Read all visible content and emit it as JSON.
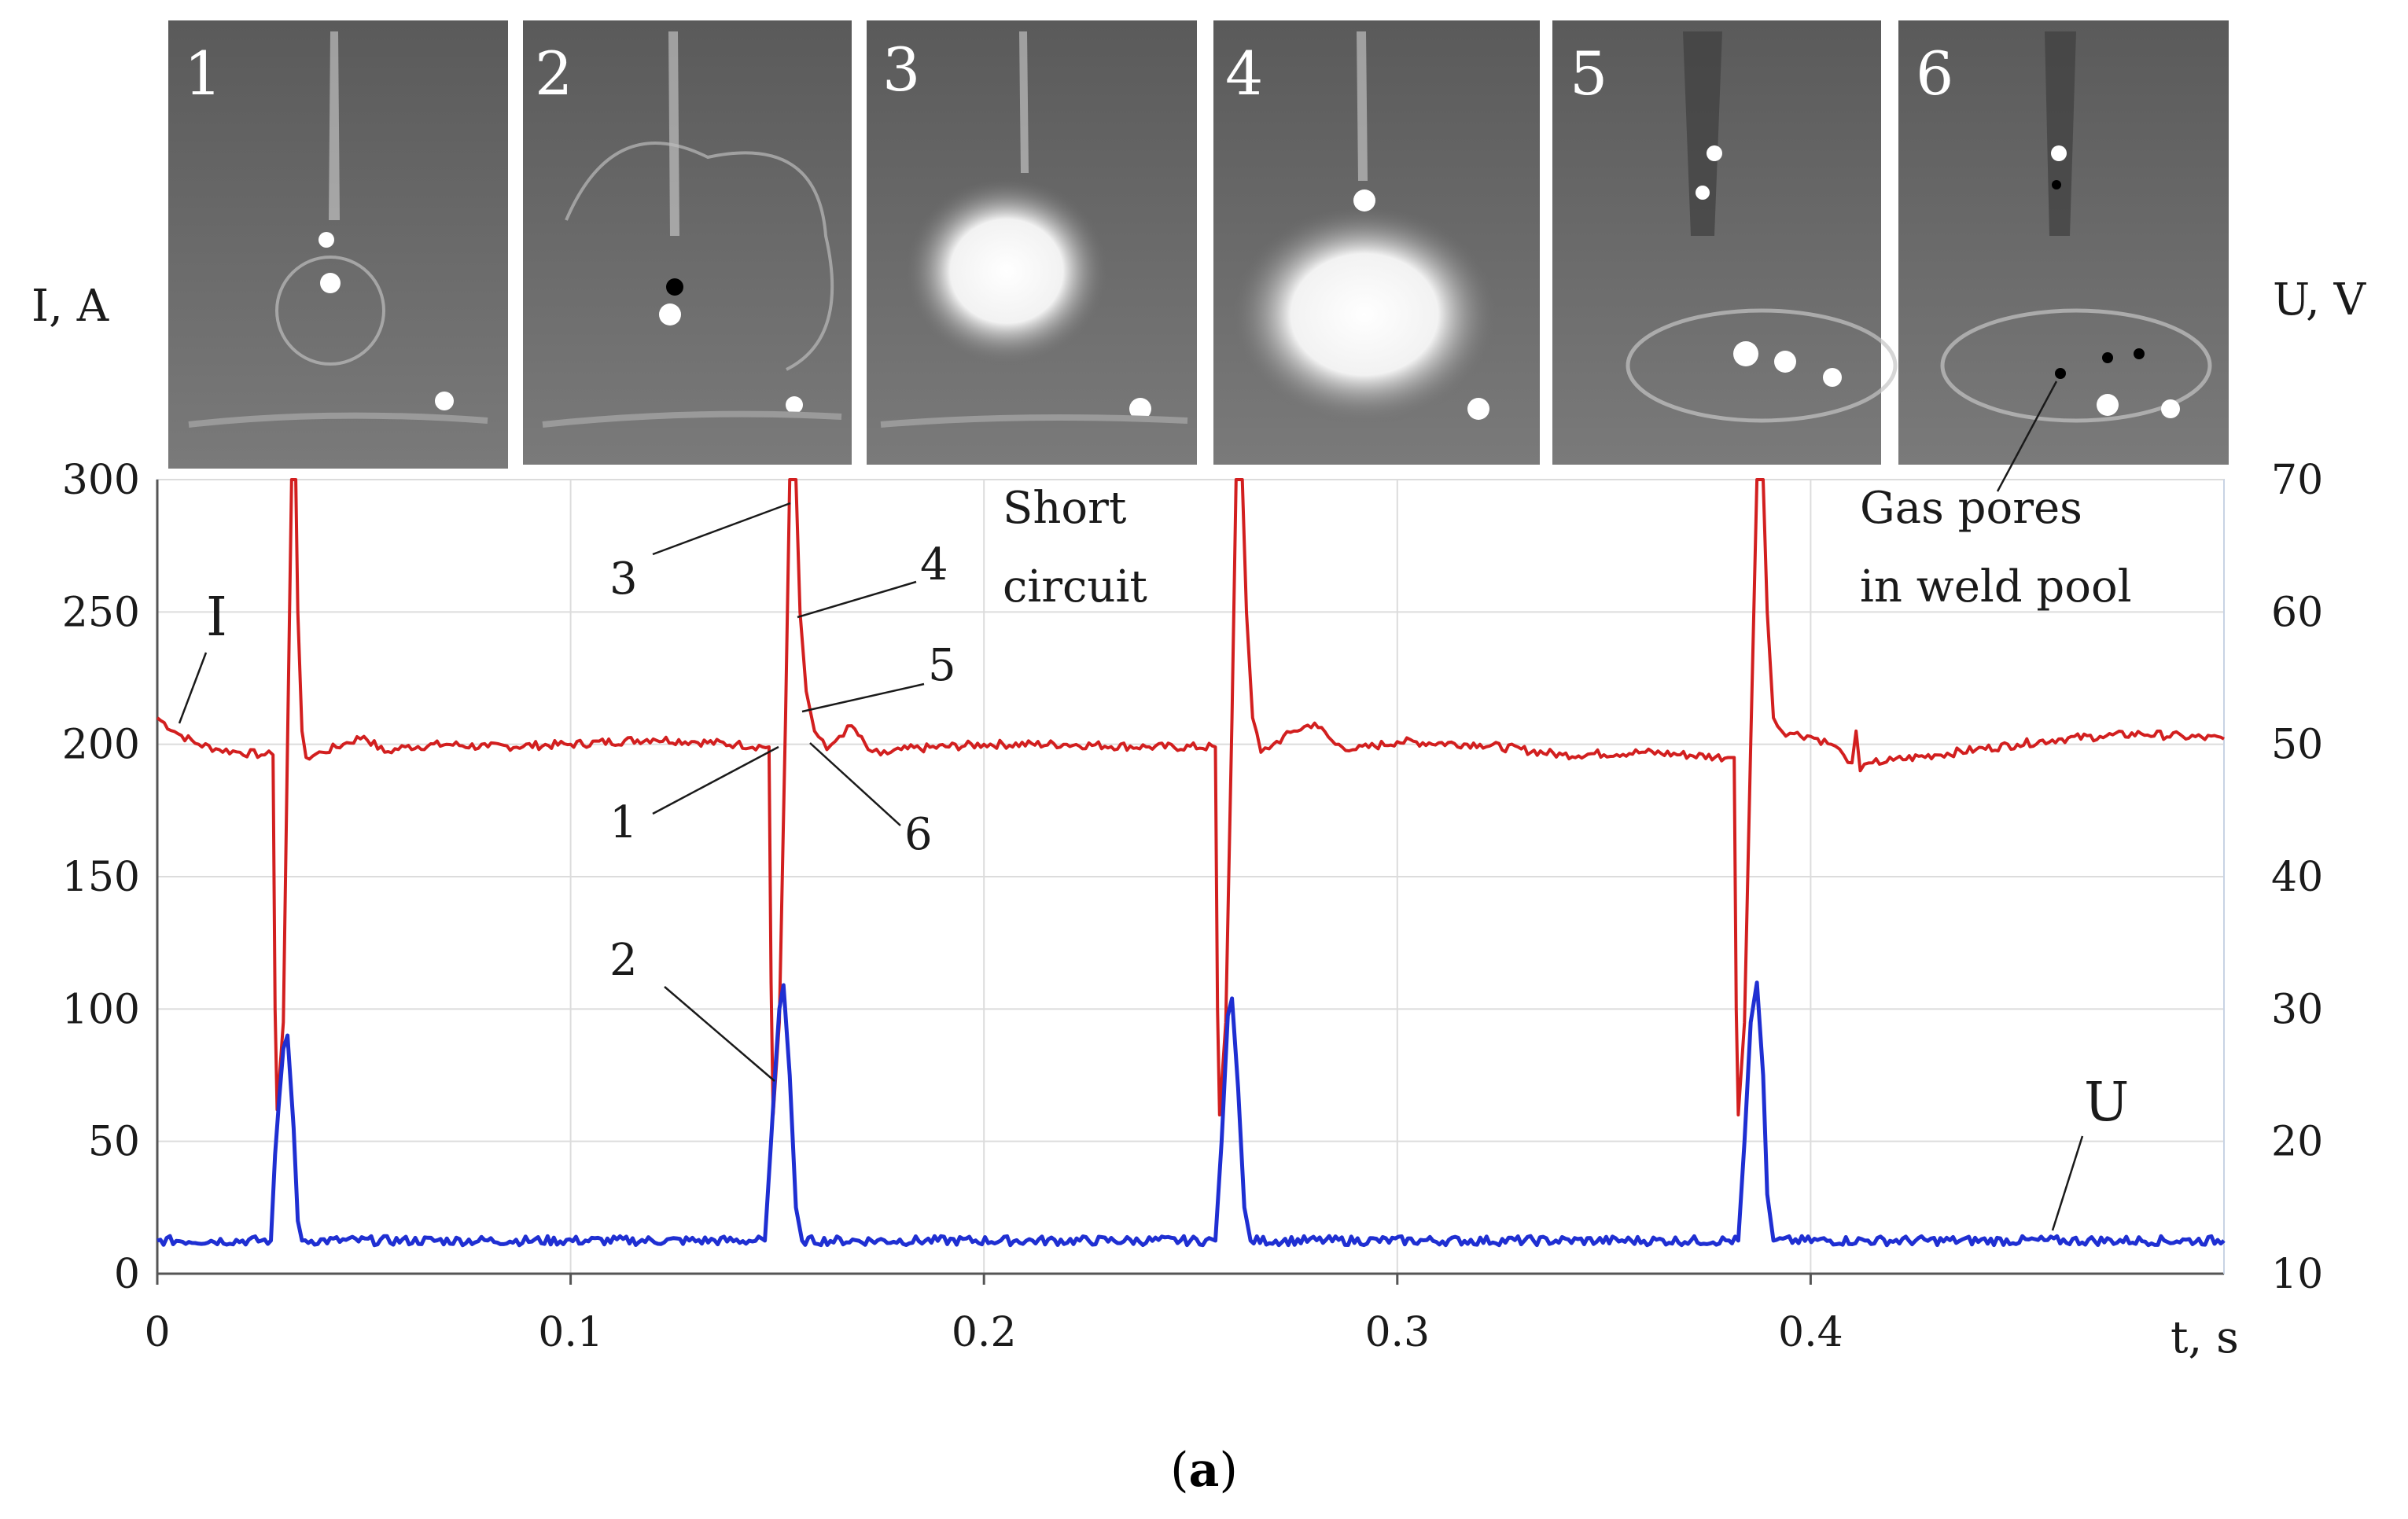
{
  "frames": [
    {
      "label": "1"
    },
    {
      "label": "2"
    },
    {
      "label": "3"
    },
    {
      "label": "4"
    },
    {
      "label": "5"
    },
    {
      "label": "6"
    }
  ],
  "chart_data": {
    "type": "line",
    "title": "",
    "xlabel": "t, s",
    "ylabel_left": "I, A",
    "ylabel_right": "U, V",
    "xlim": [
      0,
      0.5
    ],
    "ylim_left": [
      0,
      300
    ],
    "ylim_right": [
      10,
      70
    ],
    "x_ticks": [
      "0",
      "0.1",
      "0.2",
      "0.3",
      "0.4"
    ],
    "y_left_ticks": [
      "0",
      "50",
      "100",
      "150",
      "200",
      "250",
      "300"
    ],
    "y_right_ticks": [
      "10",
      "20",
      "30",
      "40",
      "50",
      "60",
      "70"
    ],
    "grid": true,
    "series": [
      {
        "name": "I",
        "axis": "left",
        "color": "#d21f1f",
        "points": [
          [
            0.0,
            210
          ],
          [
            0.005,
            204
          ],
          [
            0.01,
            200
          ],
          [
            0.015,
            198
          ],
          [
            0.02,
            197
          ],
          [
            0.026,
            196
          ],
          [
            0.028,
            196
          ],
          [
            0.0285,
            100
          ],
          [
            0.029,
            62
          ],
          [
            0.0305,
            95
          ],
          [
            0.0315,
            200
          ],
          [
            0.0325,
            300
          ],
          [
            0.0335,
            300
          ],
          [
            0.034,
            250
          ],
          [
            0.035,
            205
          ],
          [
            0.036,
            195
          ],
          [
            0.04,
            197
          ],
          [
            0.045,
            200
          ],
          [
            0.05,
            203
          ],
          [
            0.055,
            197
          ],
          [
            0.06,
            199
          ],
          [
            0.07,
            200
          ],
          [
            0.08,
            199
          ],
          [
            0.1,
            200
          ],
          [
            0.12,
            202
          ],
          [
            0.13,
            201
          ],
          [
            0.14,
            200
          ],
          [
            0.148,
            199
          ],
          [
            0.1485,
            110
          ],
          [
            0.149,
            60
          ],
          [
            0.1505,
            95
          ],
          [
            0.152,
            210
          ],
          [
            0.153,
            300
          ],
          [
            0.1545,
            300
          ],
          [
            0.1555,
            250
          ],
          [
            0.157,
            220
          ],
          [
            0.159,
            205
          ],
          [
            0.162,
            198
          ],
          [
            0.165,
            203
          ],
          [
            0.168,
            207
          ],
          [
            0.172,
            198
          ],
          [
            0.175,
            196
          ],
          [
            0.18,
            198
          ],
          [
            0.2,
            200
          ],
          [
            0.22,
            200
          ],
          [
            0.24,
            199
          ],
          [
            0.256,
            199
          ],
          [
            0.2565,
            100
          ],
          [
            0.257,
            60
          ],
          [
            0.2585,
            95
          ],
          [
            0.26,
            210
          ],
          [
            0.261,
            300
          ],
          [
            0.2625,
            300
          ],
          [
            0.2635,
            250
          ],
          [
            0.265,
            210
          ],
          [
            0.267,
            197
          ],
          [
            0.27,
            200
          ],
          [
            0.275,
            205
          ],
          [
            0.28,
            208
          ],
          [
            0.285,
            200
          ],
          [
            0.29,
            198
          ],
          [
            0.3,
            201
          ],
          [
            0.32,
            200
          ],
          [
            0.34,
            196
          ],
          [
            0.36,
            197
          ],
          [
            0.38,
            195
          ],
          [
            0.3815,
            195
          ],
          [
            0.382,
            100
          ],
          [
            0.3825,
            60
          ],
          [
            0.384,
            95
          ],
          [
            0.3855,
            200
          ],
          [
            0.387,
            300
          ],
          [
            0.3885,
            300
          ],
          [
            0.3895,
            250
          ],
          [
            0.391,
            210
          ],
          [
            0.393,
            205
          ],
          [
            0.396,
            204
          ],
          [
            0.4,
            203
          ],
          [
            0.405,
            200
          ],
          [
            0.408,
            196
          ],
          [
            0.41,
            193
          ],
          [
            0.411,
            205
          ],
          [
            0.412,
            190
          ],
          [
            0.415,
            193
          ],
          [
            0.42,
            194
          ],
          [
            0.43,
            196
          ],
          [
            0.44,
            198
          ],
          [
            0.45,
            200
          ],
          [
            0.46,
            202
          ],
          [
            0.47,
            203
          ],
          [
            0.48,
            204
          ],
          [
            0.49,
            203
          ],
          [
            0.5,
            202
          ]
        ]
      },
      {
        "name": "U",
        "axis": "right",
        "color": "#1f2fd2",
        "points": [
          [
            0.0,
            12.5
          ],
          [
            0.0275,
            12.5
          ],
          [
            0.0285,
            19
          ],
          [
            0.0305,
            27
          ],
          [
            0.0315,
            28
          ],
          [
            0.033,
            21
          ],
          [
            0.034,
            14
          ],
          [
            0.035,
            12.5
          ],
          [
            0.147,
            12.5
          ],
          [
            0.1485,
            20
          ],
          [
            0.1505,
            30
          ],
          [
            0.1515,
            31.8
          ],
          [
            0.153,
            25
          ],
          [
            0.1545,
            15
          ],
          [
            0.156,
            12.5
          ],
          [
            0.256,
            12.5
          ],
          [
            0.2575,
            20
          ],
          [
            0.259,
            29.5
          ],
          [
            0.26,
            30.8
          ],
          [
            0.2615,
            24
          ],
          [
            0.263,
            15
          ],
          [
            0.2645,
            12.5
          ],
          [
            0.3825,
            12.5
          ],
          [
            0.384,
            20
          ],
          [
            0.3855,
            29
          ],
          [
            0.387,
            32
          ],
          [
            0.3885,
            25
          ],
          [
            0.3895,
            16
          ],
          [
            0.391,
            12.5
          ],
          [
            0.5,
            12.5
          ]
        ]
      }
    ],
    "annotations": {
      "short_circuit": [
        "Short",
        "circuit"
      ],
      "gas_pores": [
        "Gas pores",
        "in weld pool"
      ],
      "markers": [
        "1",
        "2",
        "3",
        "4",
        "5",
        "6"
      ]
    }
  },
  "caption": {
    "open": "(",
    "letter": "a",
    "close": ")"
  }
}
